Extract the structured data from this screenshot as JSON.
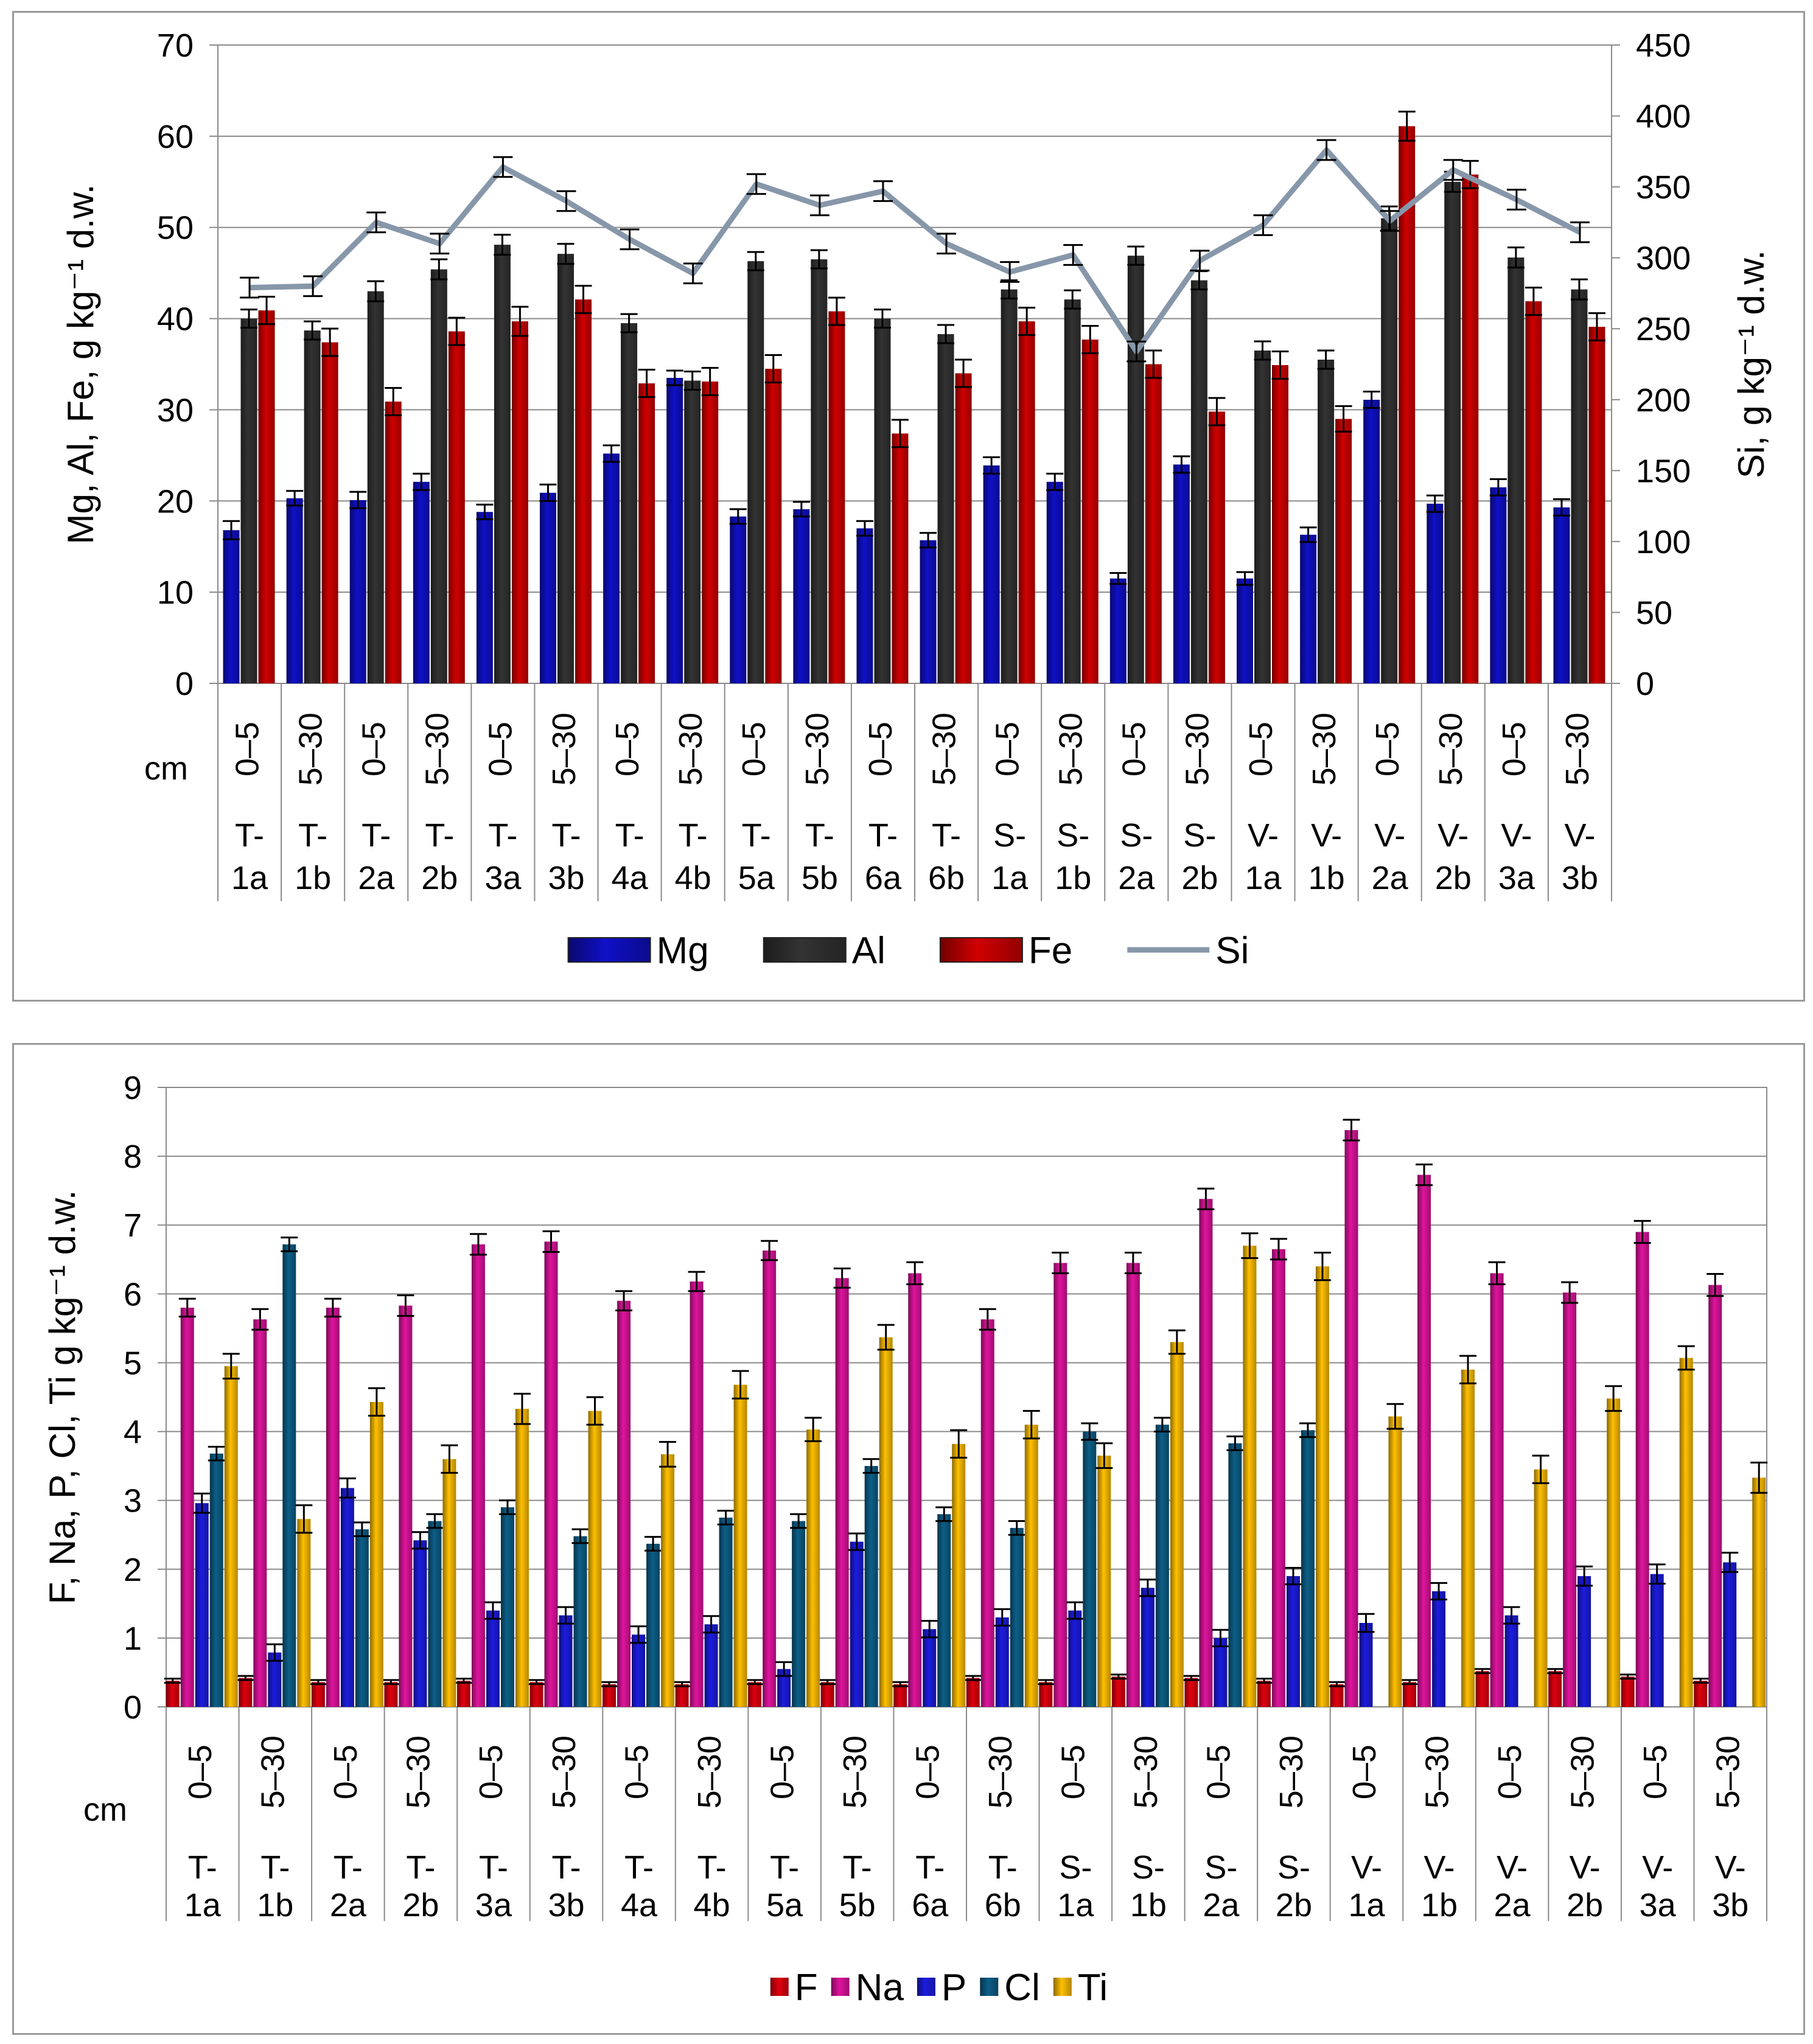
{
  "categories": [
    {
      "depth": "0–5",
      "site": [
        "T-",
        "1a"
      ]
    },
    {
      "depth": "5–30",
      "site": [
        "T-",
        "1b"
      ]
    },
    {
      "depth": "0–5",
      "site": [
        "T-",
        "2a"
      ]
    },
    {
      "depth": "5–30",
      "site": [
        "T-",
        "2b"
      ]
    },
    {
      "depth": "0–5",
      "site": [
        "T-",
        "3a"
      ]
    },
    {
      "depth": "5–30",
      "site": [
        "T-",
        "3b"
      ]
    },
    {
      "depth": "0–5",
      "site": [
        "T-",
        "4a"
      ]
    },
    {
      "depth": "5–30",
      "site": [
        "T-",
        "4b"
      ]
    },
    {
      "depth": "0–5",
      "site": [
        "T-",
        "5a"
      ]
    },
    {
      "depth": "5–30",
      "site": [
        "T-",
        "5b"
      ]
    },
    {
      "depth": "0–5",
      "site": [
        "T-",
        "6a"
      ]
    },
    {
      "depth": "5–30",
      "site": [
        "T-",
        "6b"
      ]
    },
    {
      "depth": "0–5",
      "site": [
        "S-",
        "1a"
      ]
    },
    {
      "depth": "5–30",
      "site": [
        "S-",
        "1b"
      ]
    },
    {
      "depth": "0–5",
      "site": [
        "S-",
        "2a"
      ]
    },
    {
      "depth": "5–30",
      "site": [
        "S-",
        "2b"
      ]
    },
    {
      "depth": "0–5",
      "site": [
        "V-",
        "1a"
      ]
    },
    {
      "depth": "5–30",
      "site": [
        "V-",
        "1b"
      ]
    },
    {
      "depth": "0–5",
      "site": [
        "V-",
        "2a"
      ]
    },
    {
      "depth": "5–30",
      "site": [
        "V-",
        "2b"
      ]
    },
    {
      "depth": "0–5",
      "site": [
        "V-",
        "3a"
      ]
    },
    {
      "depth": "5–30",
      "site": [
        "V-",
        "3b"
      ]
    }
  ],
  "chart_data": [
    {
      "type": "bar",
      "title": "",
      "depth_axis_label": "cm",
      "ylabel": "Mg, Al, Fe, g kg⁻¹ d.w.",
      "y2label": "Si, g kg⁻¹ d.w.",
      "ylim": [
        0,
        70
      ],
      "yticks": [
        0,
        10,
        20,
        30,
        40,
        50,
        60,
        70
      ],
      "y2lim": [
        0,
        450
      ],
      "y2ticks": [
        0,
        50,
        100,
        150,
        200,
        250,
        300,
        350,
        400,
        450
      ],
      "grid": true,
      "legend_position": "bottom",
      "error_bars": true,
      "series": [
        {
          "name": "Mg",
          "color": "#1010c8",
          "axis": "left",
          "kind": "bar",
          "values": [
            16.8,
            20.3,
            20.1,
            22.1,
            18.8,
            20.9,
            25.2,
            33.5,
            18.3,
            19.1,
            17.0,
            15.7,
            23.9,
            22.1,
            11.5,
            24.0,
            11.5,
            16.3,
            31.1,
            19.7,
            21.5,
            19.3
          ],
          "errors": [
            1.0,
            0.8,
            0.9,
            0.9,
            0.8,
            0.9,
            0.9,
            0.8,
            0.8,
            0.8,
            0.8,
            0.8,
            0.9,
            0.9,
            0.6,
            0.9,
            0.7,
            0.8,
            0.9,
            0.9,
            0.9,
            0.9
          ]
        },
        {
          "name": "Al",
          "color": "#333333",
          "axis": "left",
          "kind": "bar",
          "values": [
            40.0,
            38.7,
            43.0,
            45.4,
            48.1,
            47.1,
            39.5,
            33.2,
            46.3,
            46.5,
            40.0,
            38.3,
            43.2,
            42.1,
            46.9,
            44.2,
            36.5,
            35.5,
            51.0,
            55.0,
            46.7,
            43.2
          ],
          "errors": [
            1.0,
            1.0,
            1.1,
            1.1,
            1.1,
            1.1,
            1.0,
            1.0,
            1.0,
            1.0,
            1.0,
            1.0,
            1.0,
            1.0,
            1.0,
            1.0,
            1.0,
            1.0,
            1.3,
            1.1,
            1.1,
            1.1
          ]
        },
        {
          "name": "Fe",
          "color": "#d00000",
          "axis": "left",
          "kind": "bar",
          "values": [
            40.9,
            37.4,
            30.9,
            38.6,
            39.7,
            42.1,
            32.9,
            33.1,
            34.5,
            40.8,
            27.4,
            34.0,
            39.7,
            37.7,
            35.0,
            29.8,
            34.9,
            29.0,
            61.1,
            55.8,
            41.9,
            39.1
          ],
          "errors": [
            1.5,
            1.5,
            1.5,
            1.5,
            1.6,
            1.5,
            1.5,
            1.5,
            1.5,
            1.5,
            1.5,
            1.5,
            1.5,
            1.5,
            1.5,
            1.5,
            1.5,
            1.4,
            1.6,
            1.5,
            1.5,
            1.5
          ]
        },
        {
          "name": "Si",
          "color": "#8797aa",
          "axis": "right",
          "kind": "line",
          "values": [
            279,
            280,
            325,
            310,
            364,
            340,
            313,
            289,
            352,
            337,
            347,
            310,
            290,
            302,
            234,
            298,
            323,
            376,
            326,
            362,
            341,
            318
          ],
          "errors": [
            7,
            7,
            7,
            7,
            7,
            7,
            7,
            7,
            7,
            7,
            7,
            7,
            7,
            7,
            7,
            7,
            7,
            7,
            7,
            7,
            7,
            7
          ]
        }
      ]
    },
    {
      "type": "bar",
      "title": "",
      "depth_axis_label": "cm",
      "ylabel": "F, Na, P, Cl, Ti g kg⁻¹ d.w.",
      "ylim": [
        0,
        9
      ],
      "yticks": [
        0,
        1,
        2,
        3,
        4,
        5,
        6,
        7,
        8,
        9
      ],
      "grid": true,
      "legend_position": "bottom",
      "error_bars": true,
      "series": [
        {
          "name": "F",
          "color": "#e0000f",
          "values": [
            0.38,
            0.42,
            0.36,
            0.36,
            0.38,
            0.36,
            0.33,
            0.33,
            0.36,
            0.36,
            0.33,
            0.42,
            0.36,
            0.44,
            0.42,
            0.38,
            0.33,
            0.36,
            0.52,
            0.52,
            0.44,
            0.38
          ],
          "errors": [
            0.03,
            0.03,
            0.03,
            0.03,
            0.03,
            0.03,
            0.03,
            0.03,
            0.03,
            0.03,
            0.03,
            0.03,
            0.03,
            0.03,
            0.03,
            0.03,
            0.03,
            0.03,
            0.03,
            0.03,
            0.03,
            0.03
          ]
        },
        {
          "name": "Na",
          "color": "#e0149e",
          "values": [
            5.8,
            5.63,
            5.8,
            5.83,
            6.72,
            6.76,
            5.9,
            6.18,
            6.63,
            6.23,
            6.3,
            5.63,
            6.45,
            6.45,
            7.38,
            6.65,
            8.38,
            7.73,
            6.3,
            6.02,
            6.9,
            6.13
          ],
          "errors": [
            0.13,
            0.15,
            0.13,
            0.15,
            0.15,
            0.15,
            0.14,
            0.14,
            0.14,
            0.14,
            0.16,
            0.15,
            0.15,
            0.15,
            0.15,
            0.15,
            0.15,
            0.15,
            0.16,
            0.15,
            0.16,
            0.16
          ]
        },
        {
          "name": "P",
          "color": "#1c1ce0",
          "values": [
            2.96,
            0.79,
            3.18,
            2.42,
            1.4,
            1.33,
            1.05,
            1.2,
            0.55,
            2.4,
            1.13,
            1.3,
            1.4,
            1.73,
            1.0,
            1.9,
            1.22,
            1.68,
            1.33,
            1.9,
            1.93,
            2.1
          ],
          "errors": [
            0.14,
            0.12,
            0.14,
            0.12,
            0.12,
            0.12,
            0.12,
            0.12,
            0.1,
            0.12,
            0.12,
            0.12,
            0.12,
            0.12,
            0.12,
            0.12,
            0.13,
            0.12,
            0.12,
            0.14,
            0.14,
            0.14
          ]
        },
        {
          "name": "Cl",
          "color": "#0d5f88",
          "values": [
            3.68,
            6.72,
            2.58,
            2.7,
            2.9,
            2.48,
            2.37,
            2.75,
            2.7,
            3.5,
            2.8,
            2.6,
            4.0,
            4.1,
            3.83,
            4.02,
            0.0,
            0.0,
            0.0,
            0.0,
            0.0,
            0.0
          ],
          "errors": [
            0.1,
            0.1,
            0.1,
            0.1,
            0.1,
            0.1,
            0.1,
            0.1,
            0.1,
            0.1,
            0.1,
            0.1,
            0.12,
            0.1,
            0.1,
            0.1,
            0.0,
            0.0,
            0.0,
            0.0,
            0.0,
            0.0
          ]
        },
        {
          "name": "Ti",
          "color": "#ffc000",
          "values": [
            4.95,
            2.73,
            4.43,
            3.6,
            4.33,
            4.3,
            3.67,
            4.68,
            4.03,
            5.37,
            3.82,
            4.1,
            3.65,
            5.3,
            6.7,
            6.4,
            4.22,
            4.9,
            3.45,
            4.48,
            5.07,
            3.33
          ],
          "errors": [
            0.18,
            0.2,
            0.2,
            0.2,
            0.22,
            0.2,
            0.18,
            0.2,
            0.17,
            0.18,
            0.2,
            0.2,
            0.18,
            0.17,
            0.18,
            0.2,
            0.18,
            0.2,
            0.2,
            0.18,
            0.17,
            0.22
          ]
        }
      ]
    }
  ]
}
